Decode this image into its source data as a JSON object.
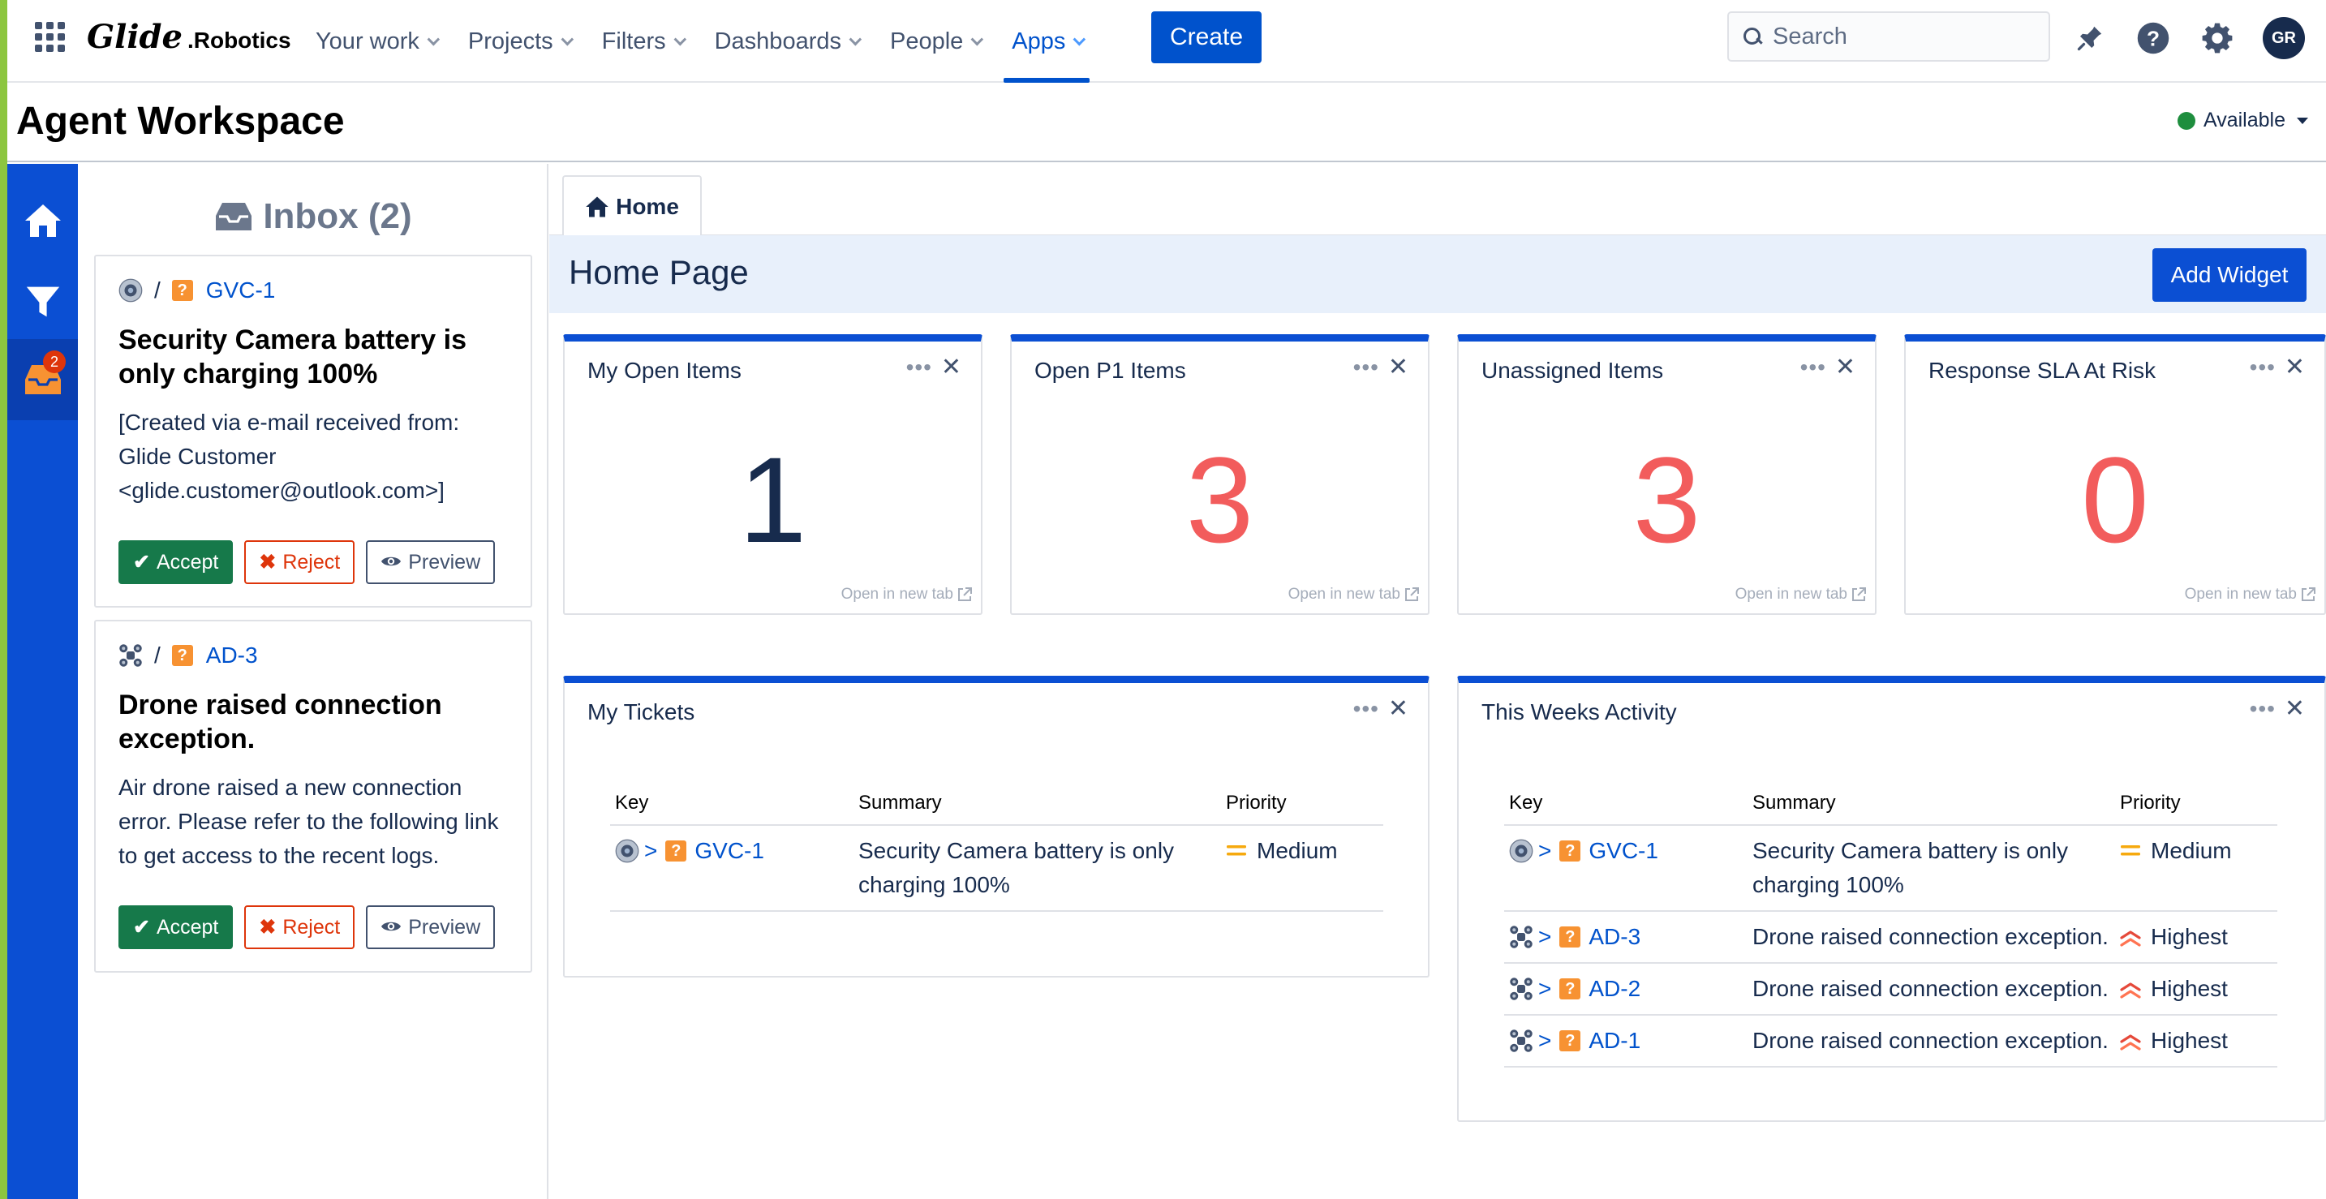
{
  "brand": {
    "logo_glide": "Glide",
    "logo_robotics": ".Robotics"
  },
  "nav": {
    "items": [
      {
        "label": "Your work"
      },
      {
        "label": "Projects"
      },
      {
        "label": "Filters"
      },
      {
        "label": "Dashboards"
      },
      {
        "label": "People"
      },
      {
        "label": "Apps",
        "active": true
      }
    ],
    "create_label": "Create",
    "search_placeholder": "Search",
    "avatar_initials": "GR"
  },
  "workspace": {
    "title": "Agent Workspace",
    "status": "Available",
    "status_color": "#1e8e3e"
  },
  "rail": {
    "inbox_badge": "2"
  },
  "inbox": {
    "title": "Inbox (2)",
    "items": [
      {
        "key": "GVC-1",
        "title": "Security Camera battery is only charging 100%",
        "body": "[Created via e-mail received from: Glide Customer <glide.customer@outlook.com>]",
        "accept": "Accept",
        "reject": "Reject",
        "preview": "Preview"
      },
      {
        "key": "AD-3",
        "title": "Drone raised connection exception.",
        "body": "Air drone raised a new connection error. Please refer to the following link to get access to the recent logs.",
        "accept": "Accept",
        "reject": "Reject",
        "preview": "Preview"
      }
    ]
  },
  "main": {
    "tab_home": "Home",
    "page_title": "Home Page",
    "add_widget": "Add Widget",
    "open_new_tab": "Open in new tab",
    "stat_widgets": [
      {
        "title": "My Open Items",
        "value": "1",
        "color": "#172b4d"
      },
      {
        "title": "Open P1 Items",
        "value": "3",
        "color": "#f25c5c"
      },
      {
        "title": "Unassigned Items",
        "value": "3",
        "color": "#f25c5c"
      },
      {
        "title": "Response SLA At Risk",
        "value": "0",
        "color": "#f25c5c"
      }
    ],
    "my_tickets": {
      "title": "My Tickets",
      "columns": [
        "Key",
        "Summary",
        "Priority"
      ],
      "rows": [
        {
          "key": "GVC-1",
          "summary": "Security Camera battery is only charging 100%",
          "priority": "Medium"
        }
      ]
    },
    "weeks_activity": {
      "title": "This Weeks Activity",
      "columns": [
        "Key",
        "Summary",
        "Priority"
      ],
      "rows": [
        {
          "key": "GVC-1",
          "summary": "Security Camera battery is only charging 100%",
          "priority": "Medium"
        },
        {
          "key": "AD-3",
          "summary": "Drone raised connection exception.",
          "priority": "Highest"
        },
        {
          "key": "AD-2",
          "summary": "Drone raised connection exception.",
          "priority": "Highest"
        },
        {
          "key": "AD-1",
          "summary": "Drone raised connection exception.",
          "priority": "Highest"
        }
      ]
    }
  }
}
